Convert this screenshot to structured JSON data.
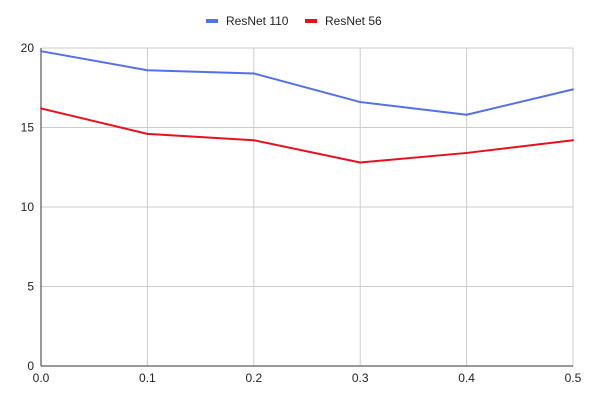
{
  "chart_data": {
    "type": "line",
    "title": "",
    "xlabel": "",
    "ylabel": "",
    "x": [
      0.0,
      0.1,
      0.2,
      0.3,
      0.4,
      0.5
    ],
    "x_tick_labels": [
      "0.0",
      "0.1",
      "0.2",
      "0.3",
      "0.4",
      "0.5"
    ],
    "xlim": [
      0,
      0.5
    ],
    "ylim": [
      0,
      20
    ],
    "y_ticks": [
      0,
      5,
      10,
      15,
      20
    ],
    "y_tick_labels": [
      "0",
      "5",
      "10",
      "15",
      "20"
    ],
    "grid": true,
    "legend_position": "top-center",
    "series": [
      {
        "name": "ResNet 110",
        "color": "#5470e8",
        "values": [
          19.8,
          18.6,
          18.4,
          16.6,
          15.8,
          17.4
        ]
      },
      {
        "name": "ResNet 56",
        "color": "#e8101c",
        "values": [
          16.2,
          14.6,
          14.2,
          12.8,
          13.4,
          14.2
        ]
      }
    ]
  }
}
